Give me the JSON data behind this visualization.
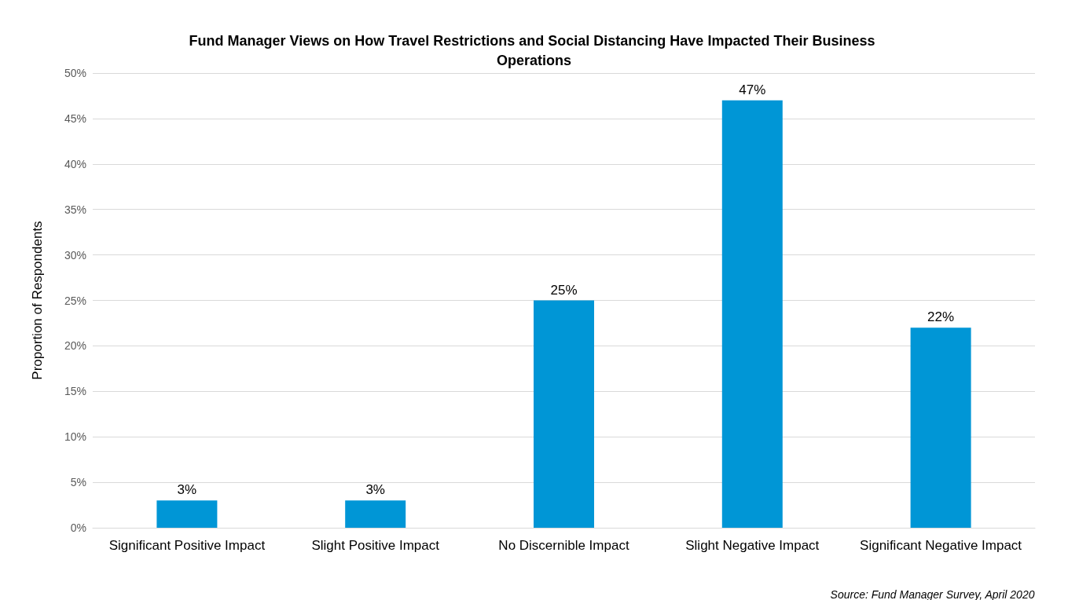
{
  "chart_data": {
    "type": "bar",
    "title": "Fund Manager Views on How Travel Restrictions and Social Distancing Have Impacted Their Business Operations",
    "ylabel": "Proportion of Respondents",
    "categories": [
      "Significant Positive Impact",
      "Slight Positive Impact",
      "No Discernible Impact",
      "Slight Negative Impact",
      "Significant Negative Impact"
    ],
    "values": [
      3,
      3,
      25,
      47,
      22
    ],
    "value_labels": [
      "3%",
      "3%",
      "25%",
      "47%",
      "22%"
    ],
    "color": "#0096d6",
    "ylim": [
      0,
      50
    ],
    "yticks": [
      {
        "value": 0,
        "label": "0%"
      },
      {
        "value": 5,
        "label": "5%"
      },
      {
        "value": 10,
        "label": "10%"
      },
      {
        "value": 15,
        "label": "15%"
      },
      {
        "value": 20,
        "label": "20%"
      },
      {
        "value": 25,
        "label": "25%"
      },
      {
        "value": 30,
        "label": "30%"
      },
      {
        "value": 35,
        "label": "35%"
      },
      {
        "value": 40,
        "label": "40%"
      },
      {
        "value": 45,
        "label": "45%"
      },
      {
        "value": 50,
        "label": "50%"
      }
    ],
    "grid": "y",
    "annotations": [
      "Source: Fund Manager Survey, April 2020"
    ]
  }
}
